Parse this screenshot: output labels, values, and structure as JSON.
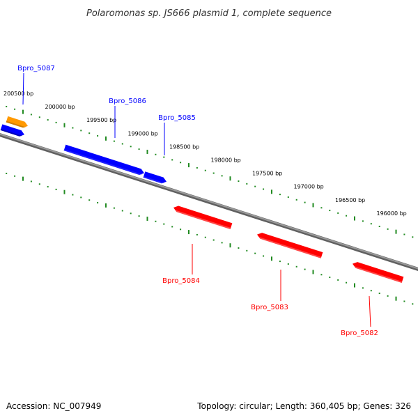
{
  "title": "Polaromonas sp. JS666 plasmid 1, complete sequence",
  "footer": {
    "accession": "Accession: NC_007949",
    "summary": "Topology: circular; Length: 360,405 bp; Genes: 326"
  },
  "colors": {
    "forward": "#0000ff",
    "reverse": "#ff0000",
    "other": "#ff9900",
    "ticks": "#228b22",
    "backbone": "#808080"
  },
  "ticks": [
    {
      "label": "200500 bp"
    },
    {
      "label": "200000 bp"
    },
    {
      "label": "199500 bp"
    },
    {
      "label": "199000 bp"
    },
    {
      "label": "198500 bp"
    },
    {
      "label": "198000 bp"
    },
    {
      "label": "197500 bp"
    },
    {
      "label": "197000 bp"
    },
    {
      "label": "196500 bp"
    },
    {
      "label": "196000 bp"
    }
  ],
  "genes": [
    {
      "label": "Bpro_5087",
      "strand": "forward",
      "type": "other"
    },
    {
      "label": "Bpro_5086",
      "strand": "forward"
    },
    {
      "label": "Bpro_5085",
      "strand": "forward"
    },
    {
      "label": "Bpro_5084",
      "strand": "reverse"
    },
    {
      "label": "Bpro_5083",
      "strand": "reverse"
    },
    {
      "label": "Bpro_5082",
      "strand": "reverse"
    }
  ]
}
